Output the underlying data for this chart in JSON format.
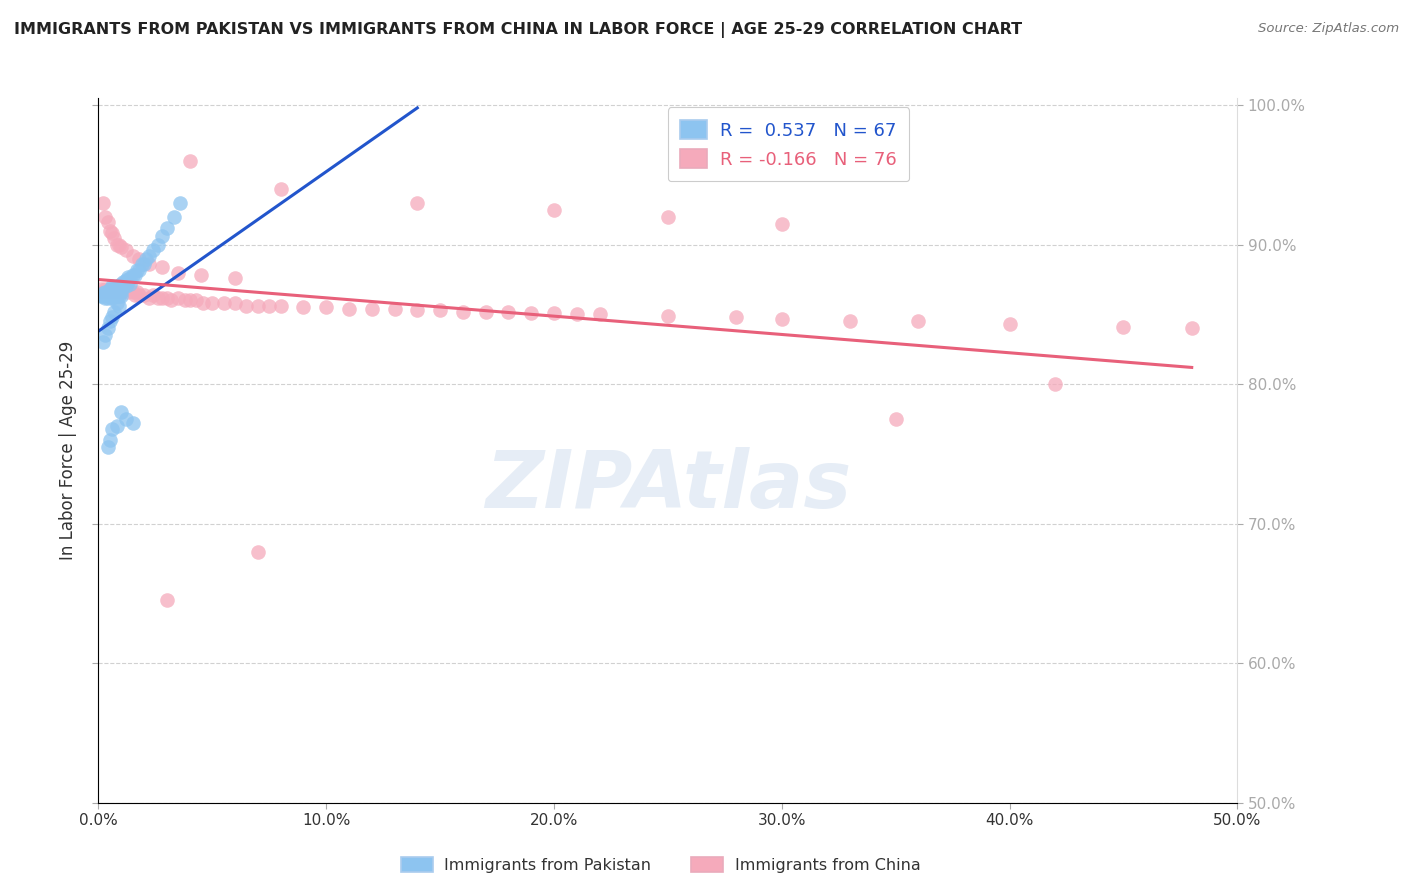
{
  "title": "IMMIGRANTS FROM PAKISTAN VS IMMIGRANTS FROM CHINA IN LABOR FORCE | AGE 25-29 CORRELATION CHART",
  "source": "Source: ZipAtlas.com",
  "ylabel_left": "In Labor Force | Age 25-29",
  "xlim": [
    0.0,
    0.5
  ],
  "ylim": [
    0.5,
    1.005
  ],
  "pakistan_R": 0.537,
  "pakistan_N": 67,
  "china_R": -0.166,
  "china_N": 76,
  "pakistan_color": "#8DC4F0",
  "china_color": "#F5AABB",
  "pakistan_line_color": "#2255CC",
  "china_line_color": "#E8607A",
  "ytick_labels_right": [
    "50.0%",
    "60.0%",
    "70.0%",
    "80.0%",
    "90.0%",
    "100.0%"
  ],
  "xtick_labels": [
    "0.0%",
    "10.0%",
    "20.0%",
    "30.0%",
    "40.0%",
    "50.0%"
  ],
  "watermark": "ZIPAtlas",
  "background_color": "#FFFFFF",
  "pak_x": [
    0.001,
    0.002,
    0.002,
    0.003,
    0.003,
    0.003,
    0.004,
    0.004,
    0.004,
    0.005,
    0.005,
    0.005,
    0.005,
    0.006,
    0.006,
    0.006,
    0.006,
    0.007,
    0.007,
    0.007,
    0.008,
    0.008,
    0.008,
    0.009,
    0.009,
    0.009,
    0.01,
    0.01,
    0.01,
    0.01,
    0.011,
    0.011,
    0.012,
    0.012,
    0.013,
    0.013,
    0.014,
    0.014,
    0.015,
    0.016,
    0.017,
    0.018,
    0.019,
    0.02,
    0.021,
    0.022,
    0.024,
    0.026,
    0.028,
    0.03,
    0.033,
    0.036,
    0.009,
    0.008,
    0.007,
    0.006,
    0.005,
    0.004,
    0.003,
    0.002,
    0.015,
    0.012,
    0.01,
    0.008,
    0.006,
    0.005,
    0.004
  ],
  "pak_y": [
    0.863,
    0.863,
    0.865,
    0.862,
    0.864,
    0.866,
    0.863,
    0.865,
    0.862,
    0.864,
    0.863,
    0.866,
    0.868,
    0.862,
    0.865,
    0.867,
    0.87,
    0.863,
    0.866,
    0.868,
    0.863,
    0.867,
    0.87,
    0.863,
    0.866,
    0.87,
    0.863,
    0.866,
    0.868,
    0.872,
    0.87,
    0.873,
    0.87,
    0.875,
    0.873,
    0.877,
    0.872,
    0.876,
    0.878,
    0.878,
    0.882,
    0.882,
    0.886,
    0.886,
    0.89,
    0.892,
    0.896,
    0.9,
    0.906,
    0.912,
    0.92,
    0.93,
    0.856,
    0.858,
    0.852,
    0.848,
    0.845,
    0.84,
    0.835,
    0.83,
    0.772,
    0.775,
    0.78,
    0.77,
    0.768,
    0.76,
    0.755
  ],
  "pak_line_x0": 0.0,
  "pak_line_x1": 0.14,
  "pak_line_y0": 0.838,
  "pak_line_y1": 0.998,
  "china_x": [
    0.001,
    0.002,
    0.003,
    0.004,
    0.005,
    0.006,
    0.007,
    0.008,
    0.009,
    0.01,
    0.012,
    0.013,
    0.015,
    0.016,
    0.017,
    0.018,
    0.02,
    0.022,
    0.024,
    0.026,
    0.028,
    0.03,
    0.032,
    0.035,
    0.038,
    0.04,
    0.043,
    0.046,
    0.05,
    0.055,
    0.06,
    0.065,
    0.07,
    0.075,
    0.08,
    0.09,
    0.1,
    0.11,
    0.12,
    0.13,
    0.14,
    0.15,
    0.16,
    0.17,
    0.18,
    0.19,
    0.2,
    0.21,
    0.22,
    0.25,
    0.28,
    0.3,
    0.33,
    0.36,
    0.4,
    0.45,
    0.48,
    0.002,
    0.003,
    0.004,
    0.005,
    0.006,
    0.007,
    0.008,
    0.009,
    0.01,
    0.012,
    0.015,
    0.018,
    0.022,
    0.028,
    0.035,
    0.045,
    0.06
  ],
  "china_y": [
    0.868,
    0.866,
    0.868,
    0.866,
    0.868,
    0.866,
    0.868,
    0.866,
    0.868,
    0.866,
    0.868,
    0.866,
    0.866,
    0.864,
    0.866,
    0.864,
    0.864,
    0.862,
    0.864,
    0.862,
    0.862,
    0.862,
    0.86,
    0.862,
    0.86,
    0.86,
    0.86,
    0.858,
    0.858,
    0.858,
    0.858,
    0.856,
    0.856,
    0.856,
    0.856,
    0.855,
    0.855,
    0.854,
    0.854,
    0.854,
    0.853,
    0.853,
    0.852,
    0.852,
    0.852,
    0.851,
    0.851,
    0.85,
    0.85,
    0.849,
    0.848,
    0.847,
    0.845,
    0.845,
    0.843,
    0.841,
    0.84,
    0.93,
    0.92,
    0.916,
    0.91,
    0.908,
    0.905,
    0.9,
    0.9,
    0.898,
    0.896,
    0.892,
    0.89,
    0.886,
    0.884,
    0.88,
    0.878,
    0.876
  ],
  "china_outliers_x": [
    0.04,
    0.08,
    0.14,
    0.2,
    0.25,
    0.3,
    0.35,
    0.42,
    0.03,
    0.07
  ],
  "china_outliers_y": [
    0.96,
    0.94,
    0.93,
    0.925,
    0.92,
    0.915,
    0.775,
    0.8,
    0.645,
    0.68
  ],
  "china_line_x0": 0.0,
  "china_line_x1": 0.48,
  "china_line_y0": 0.875,
  "china_line_y1": 0.812
}
